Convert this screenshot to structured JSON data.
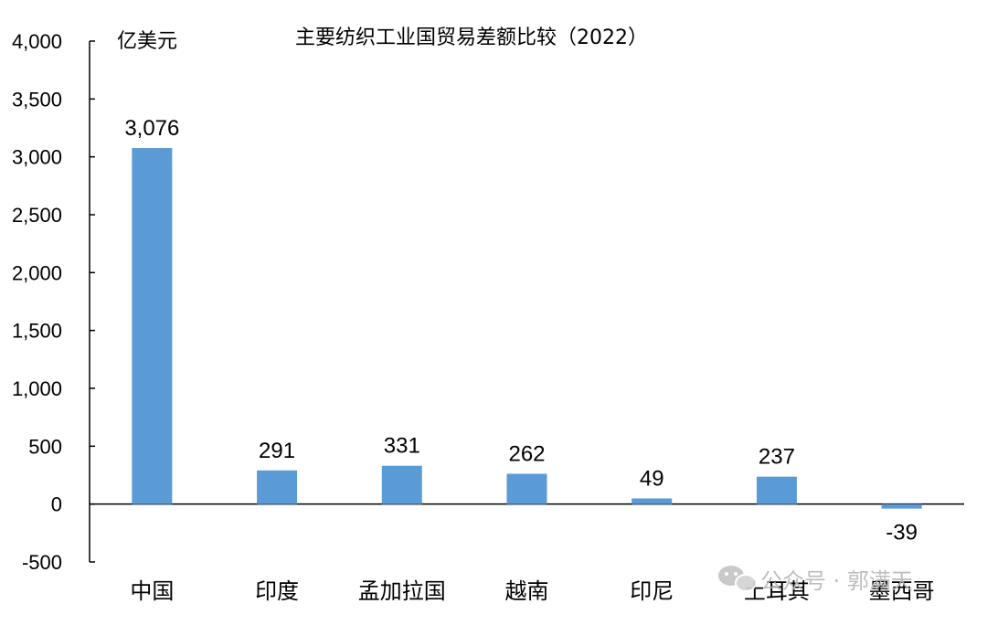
{
  "chart_data": {
    "type": "bar",
    "title": "主要纺织工业国贸易差额比较（2022）",
    "ylabel": "亿美元",
    "xlabel": "",
    "categories": [
      "中国",
      "印度",
      "孟加拉国",
      "越南",
      "印尼",
      "土耳其",
      "墨西哥"
    ],
    "values": [
      3076,
      291,
      331,
      262,
      49,
      237,
      -39
    ],
    "data_labels": [
      "3,076",
      "291",
      "331",
      "262",
      "49",
      "237",
      "-39"
    ],
    "ylim": [
      -500,
      4000
    ],
    "yticks": [
      -500,
      0,
      500,
      1000,
      1500,
      2000,
      2500,
      3000,
      3500,
      4000
    ],
    "ytick_labels": [
      "-500",
      "0",
      "500",
      "1,000",
      "1,500",
      "2,000",
      "2,500",
      "3,000",
      "3,500",
      "4,000"
    ],
    "grid": false,
    "legend": "none",
    "bar_color": "#5b9bd5"
  },
  "watermark": {
    "text": "公众号 · 郭满天",
    "icon": "wechat-icon"
  }
}
